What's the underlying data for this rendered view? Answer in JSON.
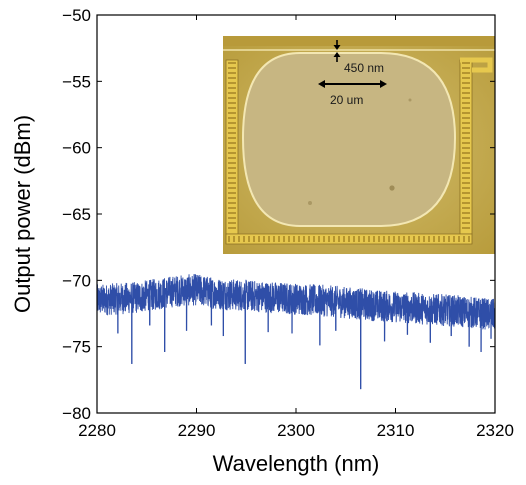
{
  "chart_data": {
    "type": "line",
    "xlabel": "Wavelength (nm)",
    "ylabel": "Output power (dBm)",
    "xlim": [
      2280,
      2320
    ],
    "ylim": [
      -80,
      -50
    ],
    "xticks": [
      2280,
      2290,
      2300,
      2310,
      2320
    ],
    "yticks": [
      -50,
      -55,
      -60,
      -65,
      -70,
      -75,
      -80
    ],
    "xtick_labels": [
      "2280",
      "2290",
      "2300",
      "2310",
      "2320"
    ],
    "ytick_labels": [
      "−50",
      "−55",
      "−60",
      "−65",
      "−70",
      "−75",
      "−80"
    ],
    "grid": false,
    "series": [
      {
        "color": "#2f4ea8",
        "x": [
          2280,
          2284,
          2288,
          2290,
          2292,
          2296,
          2300,
          2304,
          2308,
          2312,
          2316,
          2320
        ],
        "y": [
          -71.5,
          -71.3,
          -70.8,
          -70.7,
          -71.0,
          -71.2,
          -71.4,
          -71.6,
          -71.9,
          -72.1,
          -72.3,
          -72.6
        ],
        "band_halfwidth_dB": 1.2,
        "dips": [
          {
            "x": 2282.1,
            "y": -74.0
          },
          {
            "x": 2283.5,
            "y": -76.3
          },
          {
            "x": 2285.3,
            "y": -73.4
          },
          {
            "x": 2286.8,
            "y": -75.4
          },
          {
            "x": 2289.0,
            "y": -73.8
          },
          {
            "x": 2291.5,
            "y": -73.4
          },
          {
            "x": 2292.7,
            "y": -74.2
          },
          {
            "x": 2294.9,
            "y": -76.3
          },
          {
            "x": 2297.2,
            "y": -73.9
          },
          {
            "x": 2299.6,
            "y": -74.0
          },
          {
            "x": 2302.4,
            "y": -74.9
          },
          {
            "x": 2304.0,
            "y": -73.8
          },
          {
            "x": 2306.5,
            "y": -78.2
          },
          {
            "x": 2308.9,
            "y": -74.6
          },
          {
            "x": 2311.2,
            "y": -74.1
          },
          {
            "x": 2313.5,
            "y": -74.7
          },
          {
            "x": 2315.6,
            "y": -74.2
          },
          {
            "x": 2317.4,
            "y": -75.0
          },
          {
            "x": 2318.6,
            "y": -75.4
          },
          {
            "x": 2319.6,
            "y": -74.4
          }
        ]
      }
    ]
  },
  "inset": {
    "gap_label": "450 nm",
    "scale_label": "20 um",
    "colors": {
      "chip": "#c9ae4a",
      "interior": "#c4b27d",
      "ring": "#efe2a8",
      "gold": "#e6c84e"
    }
  }
}
